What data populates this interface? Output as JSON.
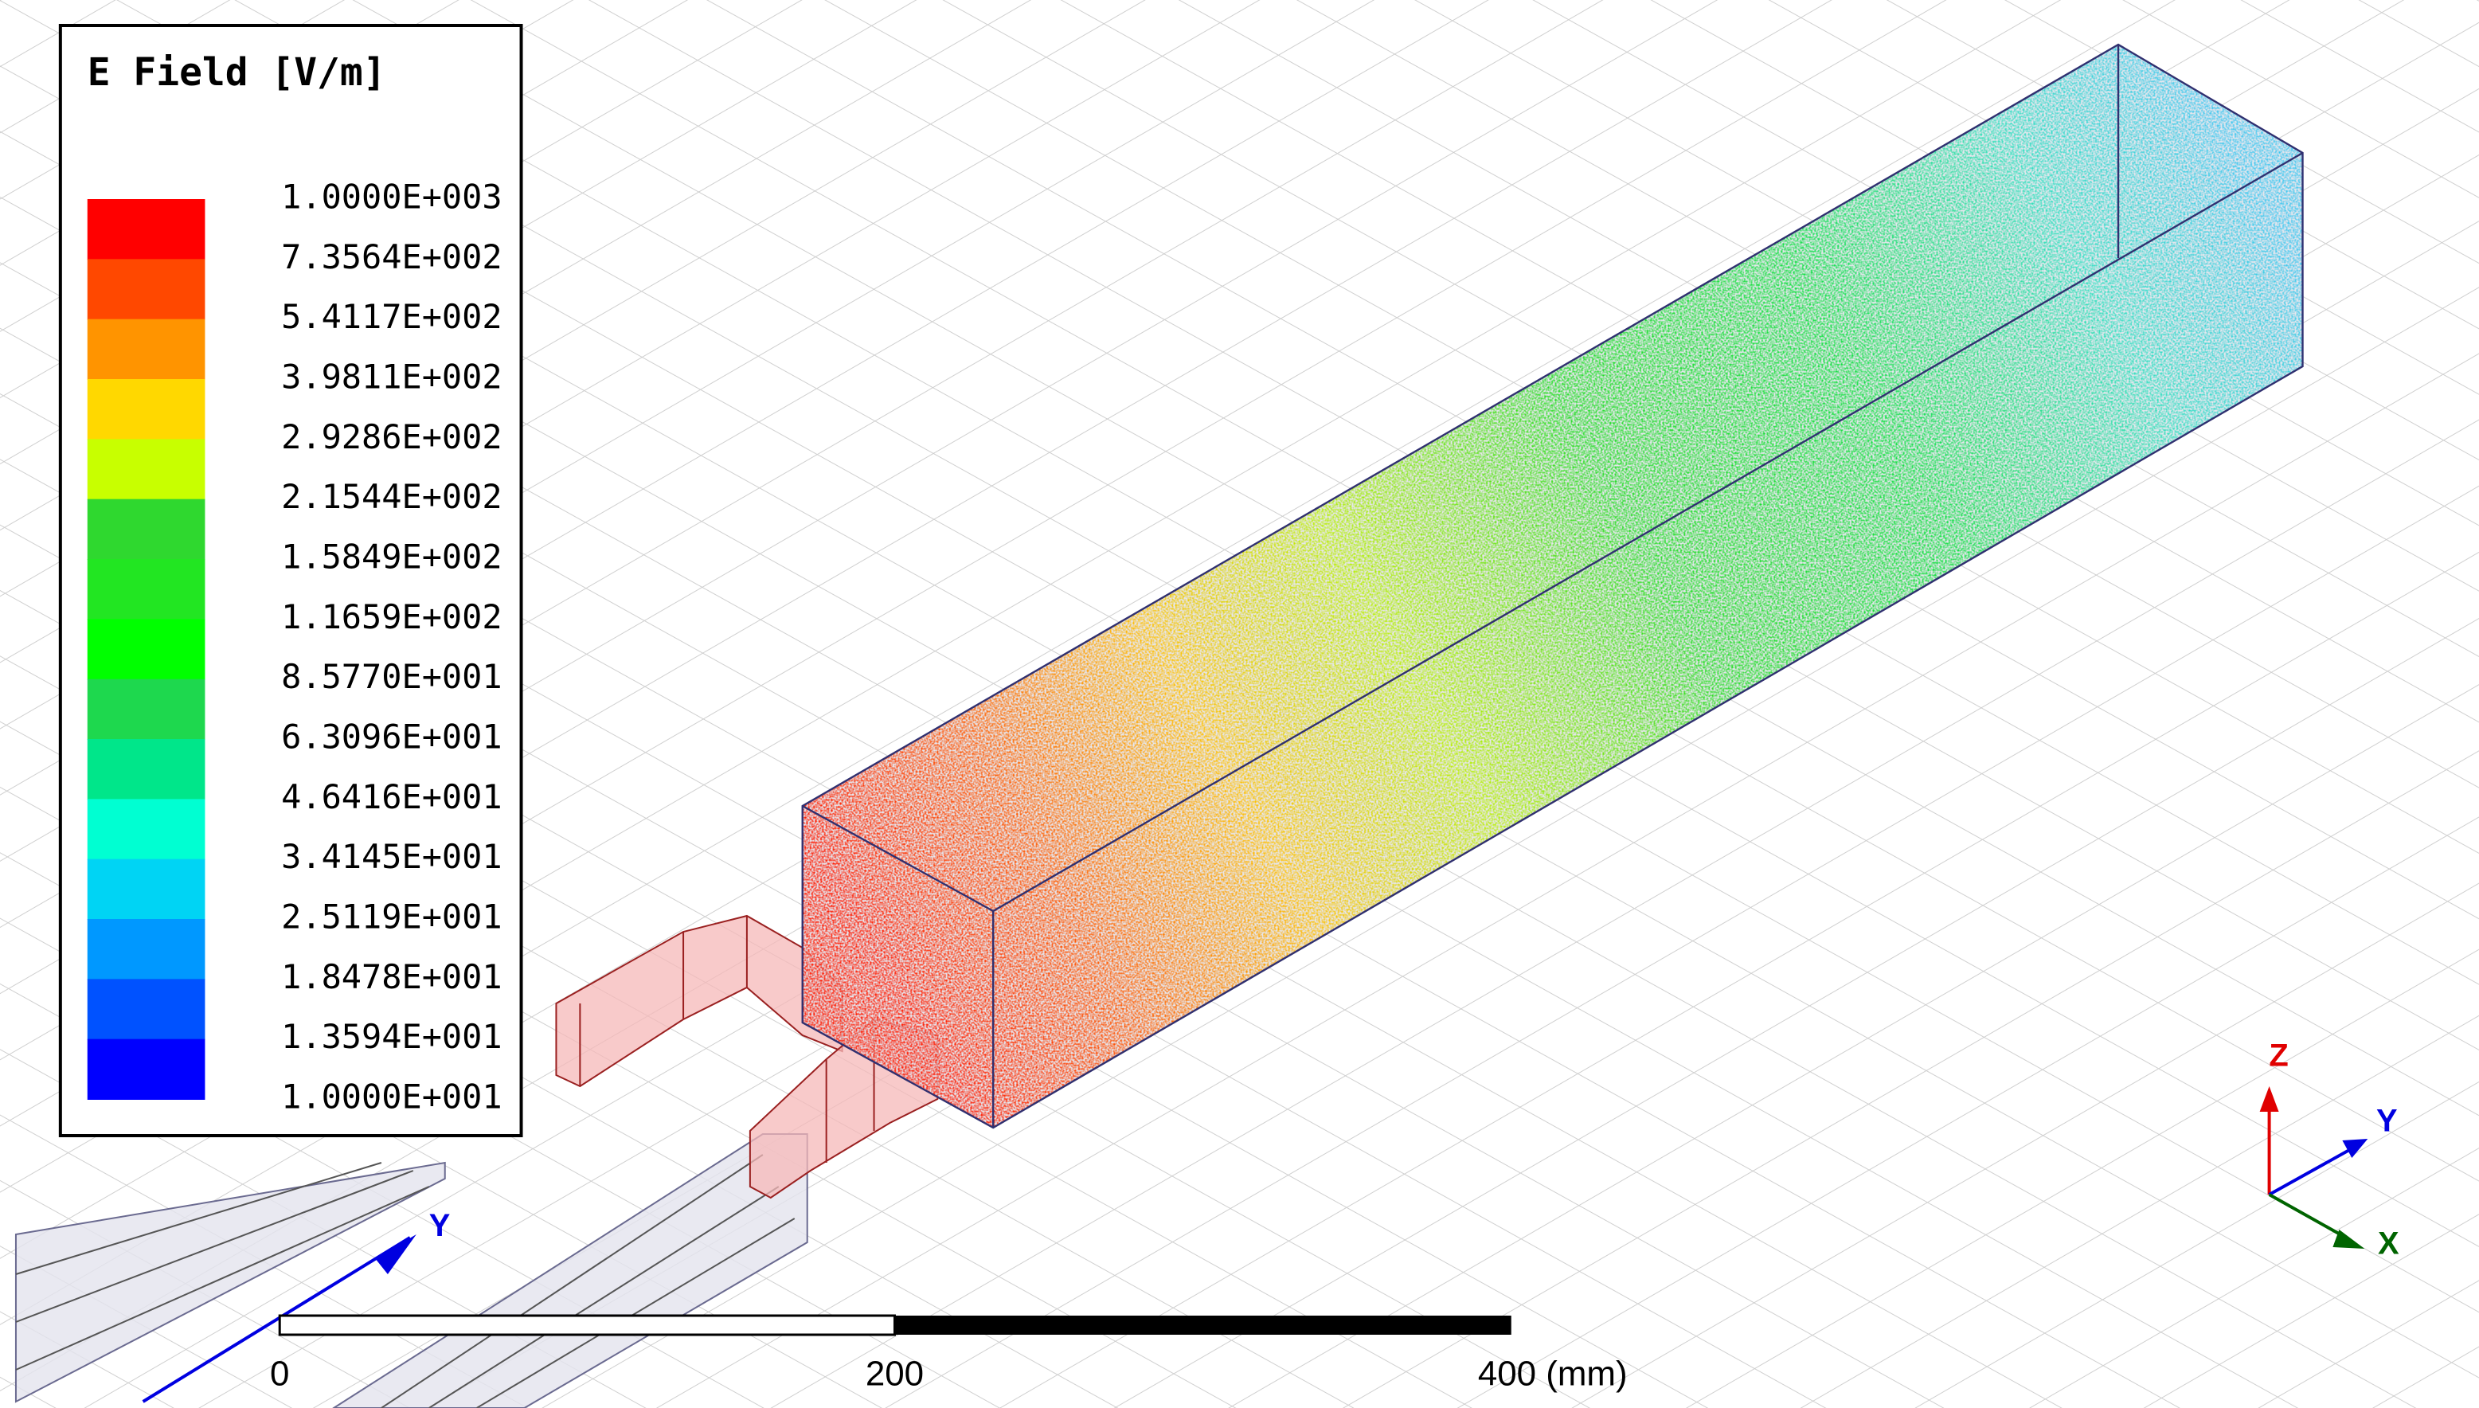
{
  "legend": {
    "title": "E Field [V/m]",
    "labels": [
      "1.0000E+003",
      "7.3564E+002",
      "5.4117E+002",
      "3.9811E+002",
      "2.9286E+002",
      "2.1544E+002",
      "1.5849E+002",
      "1.1659E+002",
      "8.5770E+001",
      "6.3096E+001",
      "4.6416E+001",
      "3.4145E+001",
      "2.5119E+001",
      "1.8478E+001",
      "1.3594E+001",
      "1.0000E+001"
    ],
    "colors": [
      "#ff0000",
      "#ff4800",
      "#ff9400",
      "#ffd800",
      "#c8ff00",
      "#2fd82f",
      "#22e622",
      "#00ff00",
      "#1ed84e",
      "#00e68a",
      "#00ffd2",
      "#00d4f4",
      "#0098ff",
      "#0052ff",
      "#0000ff"
    ]
  },
  "scale_bar": {
    "labels": [
      "0",
      "200",
      "400 (mm)"
    ]
  },
  "axes": {
    "z": "Z",
    "y": "Y",
    "x": "X"
  },
  "ground_axis_label": "Y"
}
